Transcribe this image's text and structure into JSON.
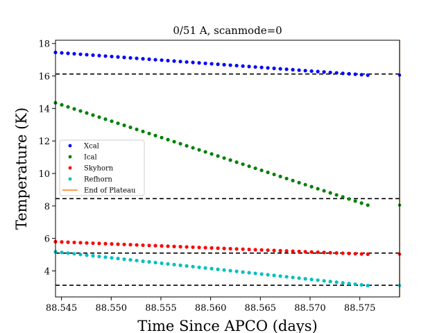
{
  "chart_data": {
    "type": "scatter",
    "title": "0/51 A, scanmode=0",
    "xlabel": "Time Since APCO (days)",
    "ylabel": "Temperature (K)",
    "xlim": [
      88.5444,
      88.579
    ],
    "ylim": [
      2.4,
      18.2
    ],
    "xticks": [
      88.545,
      88.55,
      88.555,
      88.56,
      88.565,
      88.57,
      88.575
    ],
    "xtick_labels": [
      "88.545",
      "88.550",
      "88.555",
      "88.560",
      "88.565",
      "88.570",
      "88.575"
    ],
    "yticks": [
      4,
      6,
      8,
      10,
      12,
      14,
      16,
      18
    ],
    "ytick_labels": [
      "4",
      "6",
      "8",
      "10",
      "12",
      "14",
      "16",
      "18"
    ],
    "legend_position": "center-left",
    "x_start": 88.5444,
    "x_end": 88.5758,
    "n_points": 51,
    "series": [
      {
        "name": "Xcal",
        "color": "#0000ff",
        "start": 17.45,
        "end": 16.05
      },
      {
        "name": "Ical",
        "color": "#008000",
        "start": 14.35,
        "end": 8.05
      },
      {
        "name": "Skyhorn",
        "color": "#ff0000",
        "start": 5.8,
        "end": 5.03
      },
      {
        "name": "Refhorn",
        "color": "#00bfbf",
        "start": 5.18,
        "end": 3.1
      }
    ],
    "end_of_plateau": {
      "name": "End of Plateau",
      "color": "#ff7f0e",
      "x": 88.579
    },
    "hlines": [
      16.12,
      8.45,
      5.1,
      3.12
    ],
    "hline_color": "#000000"
  }
}
